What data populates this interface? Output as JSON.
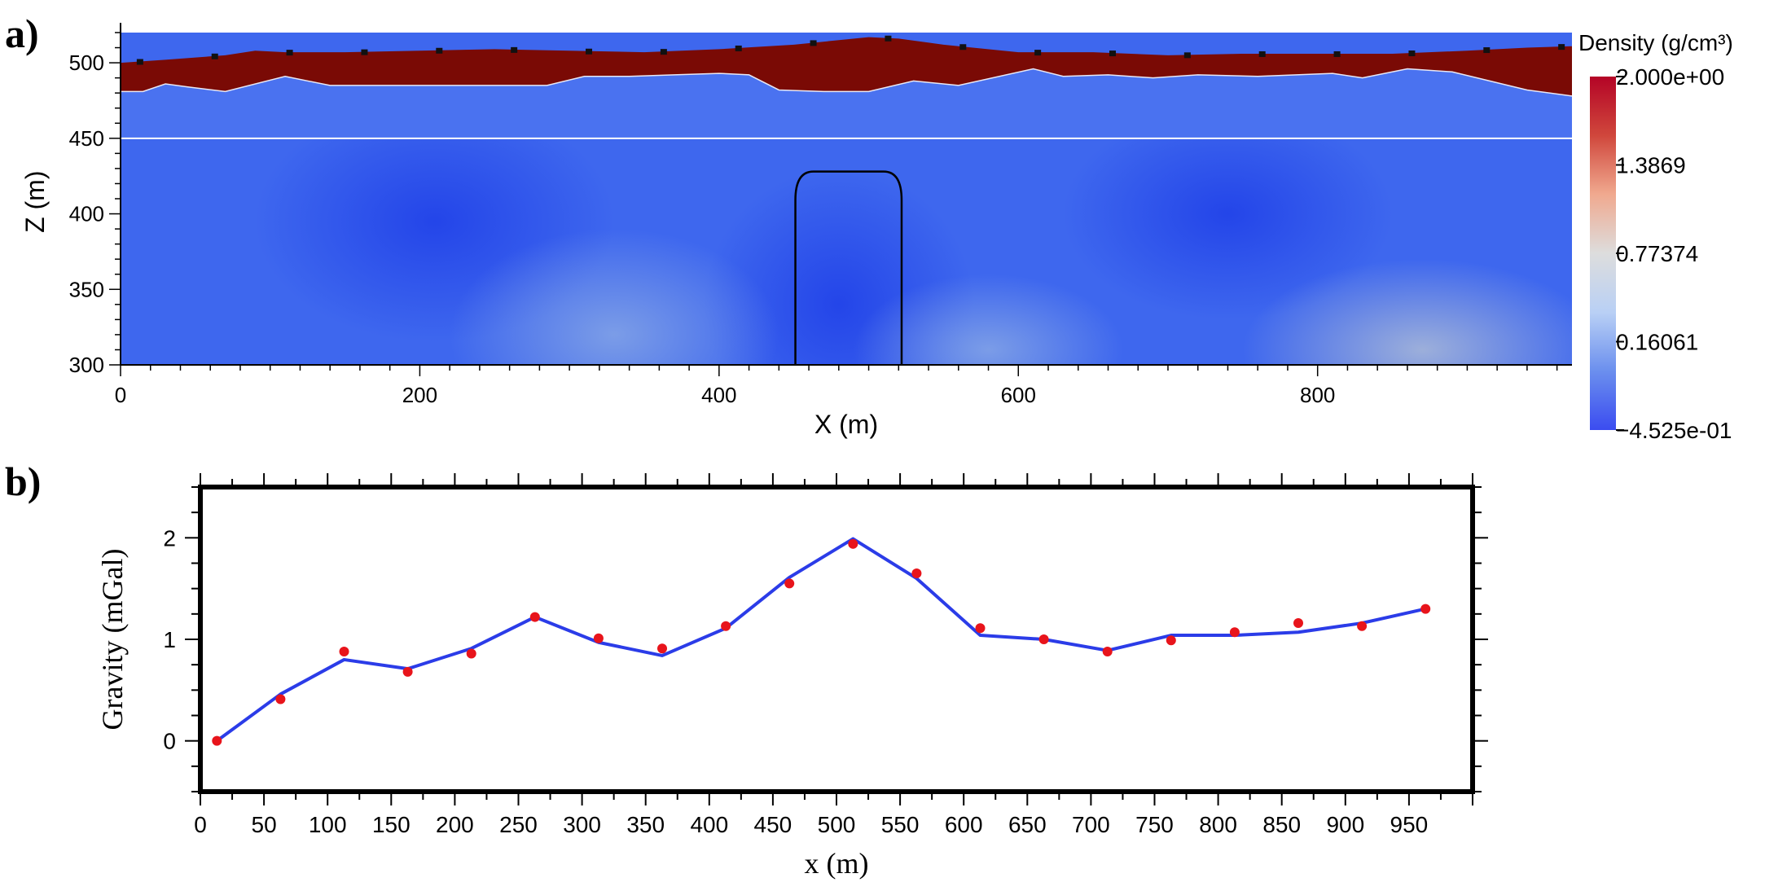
{
  "panel_a": {
    "panel_label": "a)",
    "colorbar_title": "Density (g/cm³)",
    "colorbar_ticks": [
      "2.000e+00",
      "1.3869",
      "0.77374",
      "0.16061",
      "−4.525e-01"
    ],
    "colorbar_stops": [
      "#3b4cf0",
      "#6b8fee",
      "#b9d0f5",
      "#dddddd",
      "#f0a98f",
      "#d0473c",
      "#b40426"
    ],
    "colors": {
      "layer_top": "#7a0a05",
      "background": "#3e67ee",
      "station": "#111111",
      "outline": "#000000"
    }
  },
  "panel_b": {
    "panel_label": "b)",
    "colors": {
      "line": "#2b3ce8",
      "points": "#e8141b"
    }
  },
  "chart_data": [
    {
      "type": "heatmap",
      "title": "",
      "xlabel": "X (m)",
      "ylabel": "Z (m)",
      "xlim": [
        0,
        970
      ],
      "ylim": [
        300,
        520
      ],
      "x_ticks": [
        0,
        200,
        400,
        600,
        800
      ],
      "y_ticks": [
        300,
        350,
        400,
        450,
        500
      ],
      "colorbar": {
        "label": "Density (g/cm³)",
        "range": [
          -0.4525,
          2.0
        ],
        "ticks": [
          2.0,
          1.3869,
          0.77374,
          0.16061,
          -0.4525
        ]
      },
      "surface_topography": {
        "x": [
          0,
          30,
          70,
          90,
          110,
          150,
          200,
          250,
          300,
          350,
          400,
          450,
          500,
          520,
          550,
          600,
          650,
          700,
          750,
          800,
          850,
          900,
          940,
          970
        ],
        "z": [
          500,
          502,
          505,
          508,
          507,
          507,
          508,
          509,
          508,
          507,
          509,
          512,
          517,
          516,
          512,
          507,
          507,
          505,
          506,
          506,
          506,
          508,
          510,
          511
        ]
      },
      "layer_interface": {
        "x": [
          0,
          15,
          30,
          45,
          70,
          110,
          140,
          200,
          250,
          285,
          310,
          340,
          370,
          400,
          420,
          440,
          470,
          500,
          530,
          560,
          610,
          630,
          660,
          690,
          720,
          760,
          810,
          830,
          860,
          890,
          940,
          970
        ],
        "z": [
          481,
          481,
          486,
          484,
          481,
          491,
          485,
          485,
          485,
          485,
          491,
          491,
          492,
          493,
          492,
          482,
          481,
          481,
          488,
          485,
          496,
          491,
          492,
          490,
          492,
          491,
          493,
          490,
          496,
          494,
          482,
          478
        ]
      },
      "reference_level_z": 450,
      "anomaly_body": {
        "x_range": [
          451,
          522
        ],
        "z_range": [
          300,
          428
        ]
      },
      "stations_x": [
        13,
        63,
        113,
        163,
        213,
        263,
        313,
        363,
        413,
        463,
        513,
        563,
        613,
        663,
        713,
        763,
        813,
        863,
        913,
        963
      ]
    },
    {
      "type": "line",
      "title": "",
      "xlabel": "x (m)",
      "ylabel": "Gravity (mGal)",
      "xlim": [
        0,
        1000
      ],
      "ylim": [
        -0.5,
        2.5
      ],
      "x_ticks": [
        0,
        50,
        100,
        150,
        200,
        250,
        300,
        350,
        400,
        450,
        500,
        550,
        600,
        650,
        700,
        750,
        800,
        850,
        900,
        950
      ],
      "y_ticks": [
        0,
        1,
        2
      ],
      "series": [
        {
          "kind": "line",
          "x": [
            13,
            63,
            113,
            163,
            213,
            263,
            313,
            363,
            413,
            463,
            513,
            563,
            613,
            663,
            713,
            763,
            813,
            863,
            913,
            963
          ],
          "values": [
            0.0,
            0.46,
            0.8,
            0.71,
            0.91,
            1.22,
            0.97,
            0.84,
            1.11,
            1.61,
            1.99,
            1.6,
            1.04,
            1.0,
            0.89,
            1.04,
            1.04,
            1.07,
            1.16,
            1.3
          ]
        },
        {
          "kind": "scatter",
          "x": [
            13,
            63,
            113,
            163,
            213,
            263,
            313,
            363,
            413,
            463,
            513,
            563,
            613,
            663,
            713,
            763,
            813,
            863,
            913,
            963
          ],
          "values": [
            0.0,
            0.41,
            0.88,
            0.68,
            0.86,
            1.22,
            1.01,
            0.91,
            1.13,
            1.55,
            1.94,
            1.65,
            1.11,
            1.0,
            0.88,
            0.99,
            1.07,
            1.16,
            1.13,
            1.3
          ]
        }
      ]
    }
  ]
}
